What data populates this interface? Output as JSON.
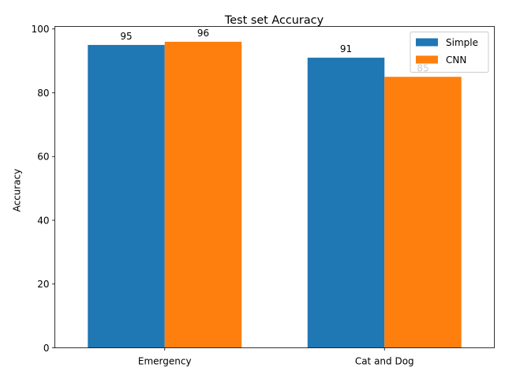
{
  "chart_data": {
    "type": "bar",
    "title": "Test set Accuracy",
    "xlabel": "",
    "ylabel": "Accuracy",
    "categories": [
      "Emergency",
      "Cat and Dog"
    ],
    "series": [
      {
        "name": "Simple",
        "values": [
          95,
          91
        ],
        "color": "#1f77b4"
      },
      {
        "name": "CNN",
        "values": [
          96,
          85
        ],
        "color": "#ff7f0e"
      }
    ],
    "ylim": [
      0,
      100.8
    ],
    "yticks": [
      0,
      20,
      40,
      60,
      80,
      100
    ],
    "data_labels": [
      [
        "95",
        "91"
      ],
      [
        "96",
        "85"
      ]
    ],
    "legend_position": "upper right",
    "grid": false
  }
}
